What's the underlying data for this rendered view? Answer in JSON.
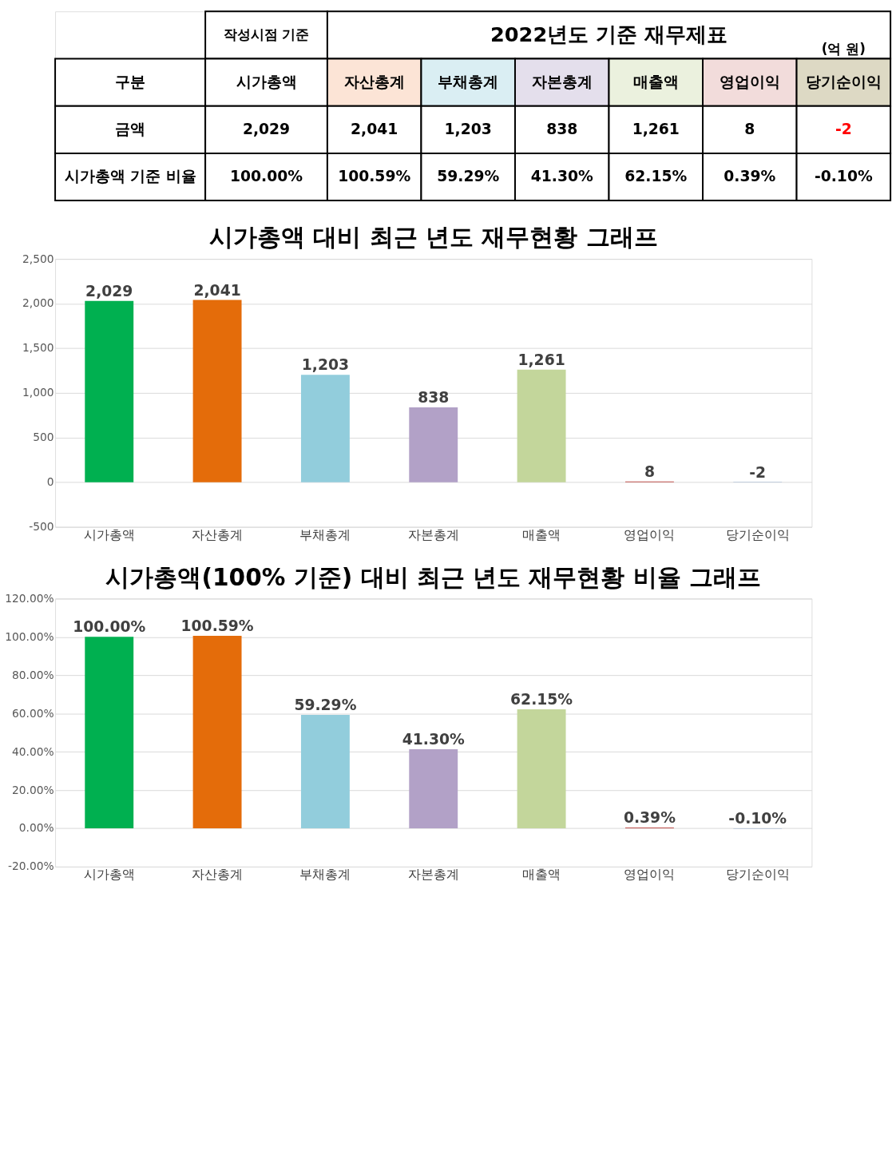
{
  "chart_data": [
    {
      "type": "other",
      "title": "2022년도 기준 재무제표",
      "xlabel": "구분",
      "annotations": [
        "작성시점 기준",
        "(억 원)"
      ],
      "categories": [
        "시가총액",
        "자산총계",
        "부채총계",
        "자본총계",
        "매출액",
        "영업이익",
        "당기순이익"
      ],
      "colors": [
        "#ffffff",
        "#fce4d6",
        "#daeef3",
        "#e4dfec",
        "#ebf1de",
        "#f2dcdb",
        "#ddd9c4"
      ],
      "series": [
        {
          "name": "금액",
          "values": [
            2029,
            2041,
            1203,
            838,
            1261,
            8,
            -2
          ],
          "value_labels": [
            "2,029",
            "2,041",
            "1,203",
            "838",
            "1,261",
            "8",
            "-2"
          ]
        },
        {
          "name": "시가총액 기준 비율",
          "values": [
            100.0,
            100.59,
            59.29,
            41.3,
            62.15,
            0.39,
            -0.1
          ],
          "value_labels": [
            "100.00%",
            "100.59%",
            "59.29%",
            "41.30%",
            "62.15%",
            "0.39%",
            "-0.10%"
          ]
        }
      ]
    },
    {
      "type": "bar",
      "title": "시가총액 대비 최근 년도 재무현황 그래프",
      "categories": [
        "시가총액",
        "자산총계",
        "부채총계",
        "자본총계",
        "매출액",
        "영업이익",
        "당기순이익"
      ],
      "values": [
        2029,
        2041,
        1203,
        838,
        1261,
        8,
        -2
      ],
      "value_labels": [
        "2,029",
        "2,041",
        "1,203",
        "838",
        "1,261",
        "8",
        "-2"
      ],
      "colors": [
        "#00b050",
        "#e46c0a",
        "#92cddc",
        "#b2a1c7",
        "#c3d69b",
        "#c0504d",
        "#4f81bd"
      ],
      "ylim": [
        -500,
        2500
      ],
      "yticks": [
        {
          "value": -500,
          "label": "-500"
        },
        0,
        500,
        {
          "value": 1000,
          "label": "1,000"
        },
        {
          "value": 1500,
          "label": "1,500"
        },
        {
          "value": 2000,
          "label": "2,000"
        },
        {
          "value": 2500,
          "label": "2,500"
        }
      ],
      "grid": "y"
    },
    {
      "type": "bar",
      "title": "시가총액(100% 기준) 대비 최근 년도 재무현황 비율 그래프",
      "categories": [
        "시가총액",
        "자산총계",
        "부채총계",
        "자본총계",
        "매출액",
        "영업이익",
        "당기순이익"
      ],
      "values": [
        100.0,
        100.59,
        59.29,
        41.3,
        62.15,
        0.39,
        -0.1
      ],
      "value_labels": [
        "100.00%",
        "100.59%",
        "59.29%",
        "41.30%",
        "62.15%",
        "0.39%",
        "-0.10%"
      ],
      "colors": [
        "#00b050",
        "#e46c0a",
        "#92cddc",
        "#b2a1c7",
        "#c3d69b",
        "#c0504d",
        "#4f81bd"
      ],
      "ylim": [
        -20,
        120
      ],
      "yticks": [
        {
          "value": -20,
          "label": "-20.00%"
        },
        {
          "value": 0,
          "label": "0.00%"
        },
        {
          "value": 20,
          "label": "20.00%"
        },
        {
          "value": 40,
          "label": "40.00%"
        },
        {
          "value": 60,
          "label": "60.00%"
        },
        {
          "value": 80,
          "label": "80.00%"
        },
        {
          "value": 100,
          "label": "100.00%"
        },
        {
          "value": 120,
          "label": "120.00%"
        }
      ],
      "grid": "y"
    }
  ]
}
